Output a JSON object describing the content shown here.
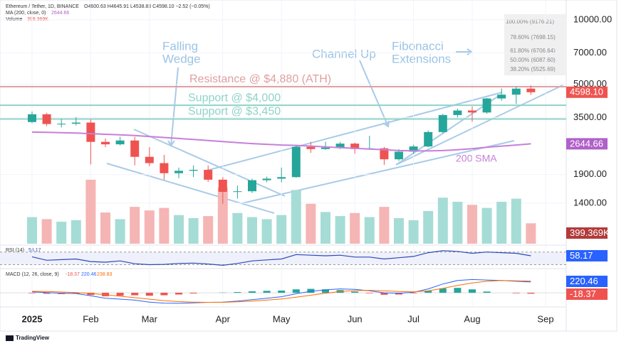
{
  "header": {
    "symbol": "Ethereum / Tether, 1D, BINANCE",
    "ohlc": "O4600.63 H4645.91 L4538.83 C4598.10 −2.52 (−0.05%)",
    "ma": "MA (200, close, 0)",
    "ma_value": "2644.66",
    "volume": "Volume",
    "volume_value": "399.369K"
  },
  "chart_data": {
    "type": "candlestick",
    "log": true,
    "categories": [
      "2025",
      null,
      null,
      null,
      "Feb",
      null,
      null,
      null,
      "Mar",
      null,
      null,
      null,
      null,
      "Apr",
      null,
      null,
      null,
      "May",
      null,
      null,
      null,
      null,
      "Jun",
      null,
      null,
      null,
      "Jul",
      null,
      null,
      null,
      "Aug",
      null,
      null,
      null,
      null,
      "Sep"
    ],
    "open": [
      3340,
      3630,
      3270,
      3280,
      3320,
      2700,
      2630,
      2740,
      2300,
      2150,
      1930,
      1980,
      2000,
      1800,
      1580,
      1590,
      1790,
      1820,
      1850,
      2560,
      2500,
      2540,
      2650,
      2500,
      2520,
      2240,
      2430,
      2570,
      3000,
      3600,
      3780,
      3700,
      4300,
      4480,
      4780,
      null
    ],
    "high": [
      3740,
      3690,
      3450,
      3520,
      3430,
      2800,
      2850,
      2850,
      2550,
      2350,
      2050,
      2100,
      2100,
      1850,
      1690,
      1820,
      1860,
      2050,
      2600,
      2700,
      2700,
      2700,
      2680,
      2880,
      2560,
      2500,
      2620,
      3050,
      3650,
      3860,
      3950,
      4330,
      4790,
      4880,
      4950,
      null
    ],
    "low": [
      3300,
      3200,
      3150,
      3220,
      2120,
      2550,
      2600,
      2100,
      2080,
      1800,
      1830,
      1850,
      1760,
      1390,
      1470,
      1560,
      1750,
      1750,
      1840,
      2400,
      2480,
      2500,
      2380,
      2480,
      2110,
      2200,
      2370,
      2550,
      2960,
      3510,
      3350,
      3650,
      4200,
      4060,
      4470,
      null
    ],
    "close": [
      3630,
      3270,
      3280,
      3320,
      2700,
      2630,
      2740,
      2300,
      2150,
      1930,
      1980,
      2000,
      1800,
      1580,
      1590,
      1790,
      1820,
      1850,
      2560,
      2500,
      2540,
      2650,
      2500,
      2520,
      2240,
      2430,
      2570,
      3000,
      3600,
      3780,
      3700,
      4300,
      4480,
      4780,
      4598.1,
      null
    ],
    "up_color": "#26a69a",
    "down_color": "#ef5350",
    "ma": {
      "name": "200 SMA",
      "color": "#c77fd9",
      "values": [
        3000,
        2990,
        2980,
        2970,
        2950,
        2930,
        2910,
        2890,
        2860,
        2830,
        2800,
        2770,
        2740,
        2710,
        2680,
        2650,
        2630,
        2610,
        2600,
        2580,
        2560,
        2540,
        2520,
        2500,
        2480,
        2460,
        2450,
        2450,
        2460,
        2480,
        2510,
        2550,
        2580,
        2610,
        2644.66,
        null
      ]
    },
    "volume": {
      "values": [
        520000,
        480000,
        430000,
        460000,
        1250000,
        610000,
        480000,
        720000,
        650000,
        700000,
        560000,
        500000,
        540000,
        1100000,
        600000,
        520000,
        480000,
        560000,
        1050000,
        780000,
        620000,
        540000,
        600000,
        520000,
        720000,
        500000,
        460000,
        640000,
        900000,
        820000,
        760000,
        700000,
        820000,
        880000,
        399369,
        null
      ]
    },
    "ylim": [
      906,
      11900
    ],
    "yticks": [
      {
        "value": 1400,
        "label": "1400.00"
      },
      {
        "value": 1900,
        "label": "1900.00"
      },
      {
        "value": 3500,
        "label": "3500.00"
      },
      {
        "value": 5000,
        "label": "5000.00"
      },
      {
        "value": 7000,
        "label": "7000.00"
      },
      {
        "value": 10000,
        "label": "10000.00"
      }
    ],
    "badges": [
      {
        "value": 4598.1,
        "label": "4598.10",
        "color": "#ef5350"
      },
      {
        "value": 2644.66,
        "label": "2644.66",
        "color": "#b061c9"
      }
    ],
    "volume_badge": {
      "value": 399369,
      "label": "399.369K",
      "color": "#b23a3a"
    },
    "levels": [
      {
        "name": "Resistance @ $4,880 (ATH)",
        "value": 4880,
        "color": "#e0a0a0"
      },
      {
        "name": "Support @ $4,000",
        "value": 4000,
        "color": "#8fd3c8"
      },
      {
        "name": "Support @ $3,450",
        "value": 3450,
        "color": "#8fd3c8"
      }
    ],
    "annotations": [
      "Falling",
      "Wedge",
      "Channel Up",
      "Fibonacci",
      "Extensions"
    ],
    "fib": [
      "100.00% (9176.21)",
      "78.60% (7698.15)",
      "61.80% (6706.64)",
      "50.00% (6087.60)",
      "38.20% (5525.69)"
    ],
    "rsi": {
      "title": "RSI (14)",
      "title_value": "58.17",
      "color": "#2f49b3",
      "ylim": [
        20,
        85
      ],
      "bands": [
        30,
        70
      ],
      "values": [
        55,
        44,
        46,
        48,
        40,
        38,
        42,
        33,
        30,
        31,
        34,
        35,
        32,
        28,
        34,
        42,
        45,
        48,
        62,
        60,
        58,
        60,
        54,
        54,
        48,
        52,
        56,
        68,
        74,
        72,
        66,
        70,
        68,
        66,
        58.17,
        null
      ],
      "badge": {
        "value": 58.17,
        "label": "58.17",
        "color": "#2962ff"
      }
    },
    "macd": {
      "title": "MACD (12, 26, close, 9)",
      "title_values": [
        "-18.37",
        "220.46",
        "238.83"
      ],
      "ylim": [
        -260,
        320
      ],
      "macd": {
        "color": "#2962ff",
        "values": [
          20,
          5,
          -10,
          -15,
          -60,
          -110,
          -130,
          -150,
          -190,
          -210,
          -215,
          -205,
          -195,
          -190,
          -170,
          -140,
          -110,
          -80,
          -20,
          30,
          60,
          80,
          70,
          40,
          0,
          -10,
          10,
          80,
          180,
          250,
          270,
          260,
          250,
          235,
          220.46,
          null
        ]
      },
      "signal": {
        "color": "#ff6d00",
        "values": [
          30,
          25,
          15,
          5,
          -15,
          -40,
          -70,
          -100,
          -130,
          -160,
          -180,
          -190,
          -195,
          -195,
          -185,
          -170,
          -150,
          -125,
          -90,
          -50,
          -10,
          25,
          45,
          50,
          40,
          25,
          20,
          40,
          90,
          150,
          200,
          235,
          250,
          245,
          238.83,
          null
        ]
      },
      "hist": {
        "values": [
          -10,
          -20,
          -25,
          -20,
          -45,
          -70,
          -60,
          -50,
          -60,
          -50,
          -35,
          -15,
          0,
          5,
          15,
          30,
          40,
          45,
          70,
          80,
          70,
          55,
          25,
          -10,
          -40,
          -35,
          -10,
          40,
          90,
          100,
          70,
          25,
          0,
          -10,
          -18.37,
          null
        ]
      },
      "badges": [
        {
          "value": 220.46,
          "label": "220.46",
          "color": "#2962ff"
        },
        {
          "value": -18.37,
          "label": "-18.37",
          "color": "#ef5350"
        }
      ]
    }
  },
  "footer": {
    "brand": "TradingView"
  }
}
